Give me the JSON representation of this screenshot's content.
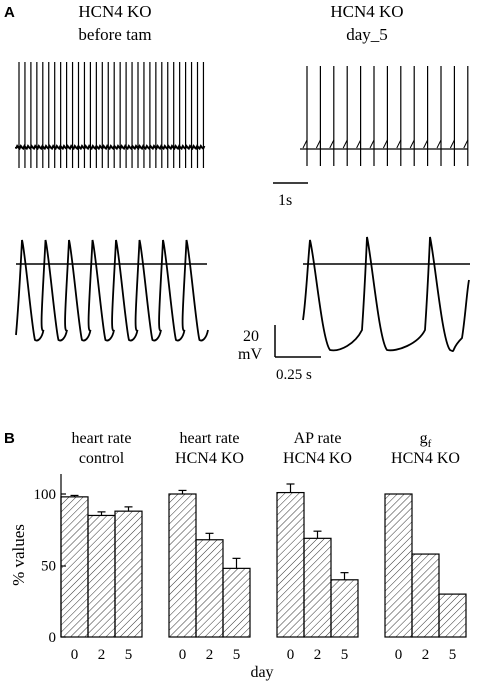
{
  "panel_a": {
    "letter": "A",
    "left_title_1": "HCN4 KO",
    "left_title_2": "before tam",
    "right_title_1": "HCN4 KO",
    "right_title_2": "day_5",
    "time_scale": "1s",
    "volt_scale": "20",
    "volt_unit": "mV",
    "time_scale_fine": "0.25 s"
  },
  "panel_b": {
    "letter": "B",
    "ylabel": "% values",
    "xlabel": "day"
  },
  "chart_data": {
    "type": "bar",
    "ylabel": "% values",
    "xlabel": "day",
    "ylim": [
      0,
      110
    ],
    "yticks": [
      0,
      50,
      100
    ],
    "categories": [
      "0",
      "2",
      "5"
    ],
    "groups": [
      {
        "title_1": "heart rate",
        "title_2": "control",
        "values": [
          98,
          85,
          88
        ],
        "errors": [
          1,
          2.5,
          3
        ]
      },
      {
        "title_1": "heart rate",
        "title_2": "HCN4 KO",
        "values": [
          100,
          68,
          48
        ],
        "errors": [
          2.5,
          4.5,
          7
        ]
      },
      {
        "title_1": "AP rate",
        "title_2": "HCN4 KO",
        "values": [
          101,
          69,
          40
        ],
        "errors": [
          6,
          5,
          5
        ]
      },
      {
        "title_1": "g",
        "title_1_sub": "f",
        "title_2": "HCN4 KO",
        "values": [
          100,
          58,
          30
        ],
        "errors": [
          0,
          0,
          0
        ]
      }
    ]
  }
}
